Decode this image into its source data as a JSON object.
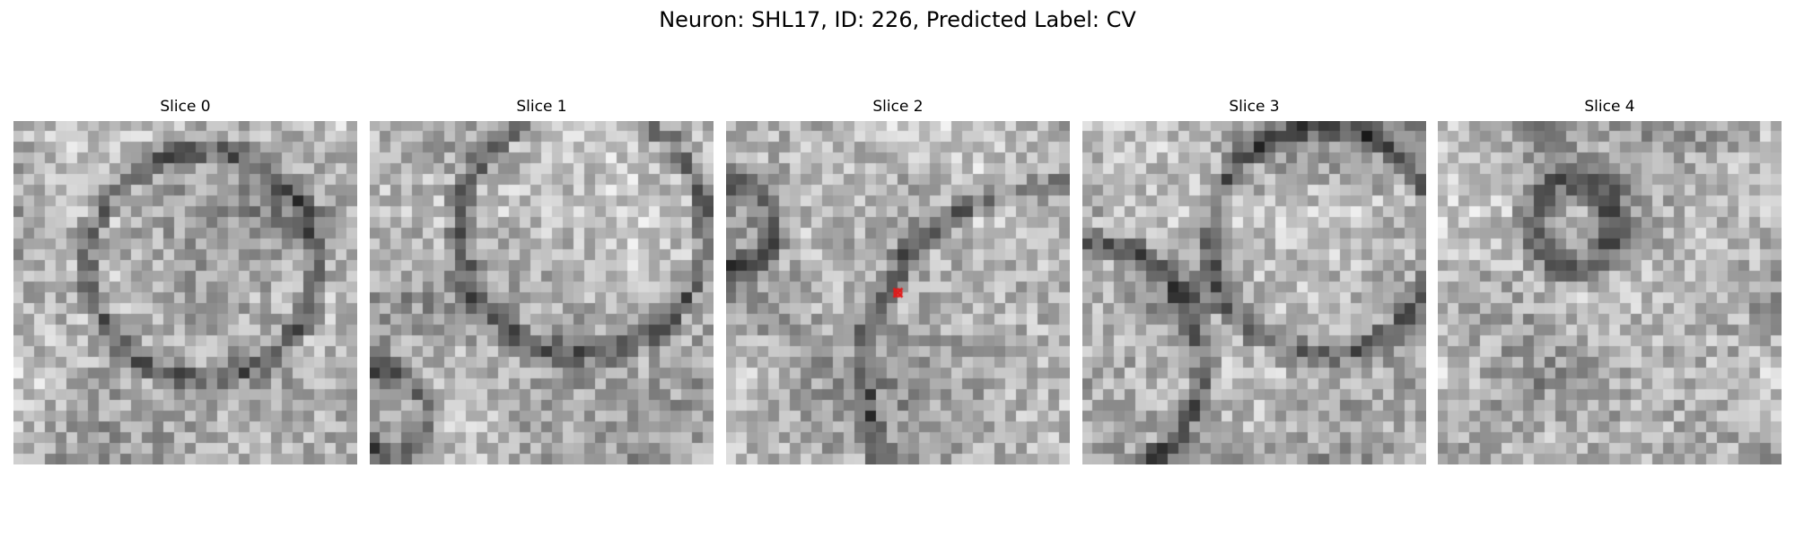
{
  "figure": {
    "title": "Neuron: SHL17, ID: 226, Predicted Label: CV"
  },
  "slices": [
    {
      "title": "Slice 0"
    },
    {
      "title": "Slice 1"
    },
    {
      "title": "Slice 2"
    },
    {
      "title": "Slice 3"
    },
    {
      "title": "Slice 4"
    }
  ],
  "marker": {
    "slice_index": 2,
    "color": "#e01b1b",
    "shape": "x-marker-icon"
  },
  "colors": {
    "background": "#ffffff",
    "colormap": "gray"
  }
}
